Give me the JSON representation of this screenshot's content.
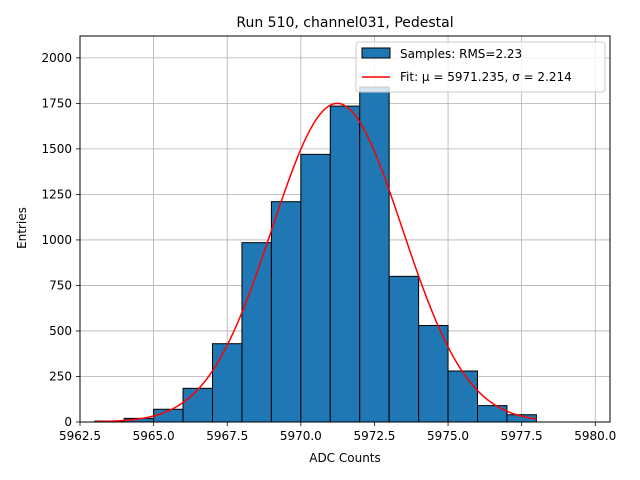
{
  "chart_data": {
    "type": "bar",
    "title": "Run 510, channel031, Pedestal",
    "xlabel": "ADC Counts",
    "ylabel": "Entries",
    "xlim": [
      5962.5,
      5980.5
    ],
    "ylim": [
      0,
      2120
    ],
    "xticks": [
      5962.5,
      5965.0,
      5967.5,
      5970.0,
      5972.5,
      5975.0,
      5977.5,
      5980.0
    ],
    "xtick_labels": [
      "5962.5",
      "5965.0",
      "5967.5",
      "5970.0",
      "5972.5",
      "5975.0",
      "5977.5",
      "5980.0"
    ],
    "yticks": [
      0,
      250,
      500,
      750,
      1000,
      1250,
      1500,
      1750,
      2000
    ],
    "ytick_labels": [
      "0",
      "250",
      "500",
      "750",
      "1000",
      "1250",
      "1500",
      "1750",
      "2000"
    ],
    "grid": true,
    "legend_position": "top-right",
    "bin_edges": [
      5963,
      5964,
      5965,
      5966,
      5967,
      5968,
      5969,
      5970,
      5971,
      5972,
      5973,
      5974,
      5975,
      5976,
      5977,
      5978,
      5979
    ],
    "histogram": {
      "name": "Samples: RMS=2.23",
      "values": [
        5,
        20,
        70,
        185,
        430,
        985,
        1210,
        1470,
        1735,
        1840,
        800,
        530,
        280,
        90,
        40,
        0
      ]
    },
    "fit": {
      "name": "Fit: μ = 5971.235, σ = 2.214",
      "mu": 5971.235,
      "sigma": 2.214,
      "amplitude": 1750,
      "x_range": [
        5963,
        5978
      ]
    },
    "colors": {
      "bar_fill": "#1f77b4",
      "bar_edge": "#000000",
      "fit_line": "#ff0000",
      "grid": "#b0b0b0"
    }
  }
}
